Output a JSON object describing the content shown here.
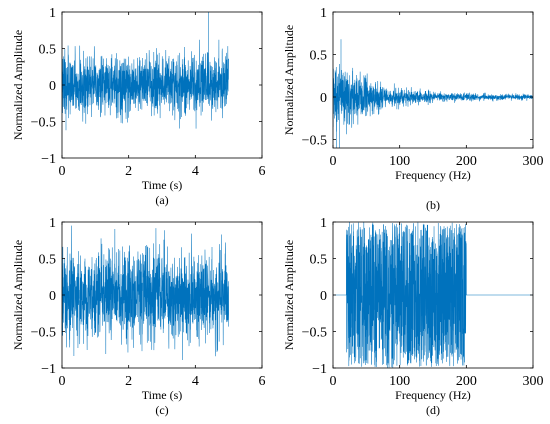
{
  "series_color": "#0072BD",
  "chart_data": [
    {
      "type": "line",
      "panel": "a",
      "caption": "(a)",
      "xlabel": "Time (s)",
      "ylabel": "Normalized Amplitude",
      "xlim": [
        0,
        6
      ],
      "ylim": [
        -1,
        1
      ],
      "xticks": [
        0,
        2,
        4,
        6
      ],
      "yticks": [
        -1,
        -0.5,
        0,
        0.5,
        1
      ],
      "x_tick_labels": [
        "0",
        "2",
        "4",
        "6"
      ],
      "y_tick_labels": [
        "−1",
        "−0.5",
        "0",
        "0.5",
        "1"
      ],
      "x_range": [
        0,
        5
      ],
      "signal": {
        "kind": "noise",
        "amplitude": 0.62,
        "baseline": 0,
        "spikes": [
          {
            "x": 4.4,
            "y": 1.0
          },
          {
            "x": 0.12,
            "y": -0.62
          }
        ]
      }
    },
    {
      "type": "line",
      "panel": "b",
      "caption": "(b)",
      "xlabel": "Frequency (Hz)",
      "ylabel": "Normalized Amplitude",
      "xlim": [
        0,
        300
      ],
      "ylim": [
        -0.6,
        1
      ],
      "xticks": [
        0,
        100,
        200,
        300
      ],
      "yticks": [
        -0.5,
        0,
        0.5,
        1
      ],
      "x_tick_labels": [
        "0",
        "100",
        "200",
        "300"
      ],
      "y_tick_labels": [
        "−0.5",
        "0",
        "0.5",
        "1"
      ],
      "x_range": [
        0,
        300
      ],
      "signal": {
        "kind": "decaying",
        "peak": 0.68,
        "trough": -0.6,
        "tail_amplitude": 0.04,
        "baseline": 0
      }
    },
    {
      "type": "line",
      "panel": "c",
      "caption": "(c)",
      "xlabel": "Time (s)",
      "ylabel": "Normalized Amplitude",
      "xlim": [
        0,
        6
      ],
      "ylim": [
        -1,
        1
      ],
      "xticks": [
        0,
        2,
        4,
        6
      ],
      "yticks": [
        -1,
        -0.5,
        0,
        0.5,
        1
      ],
      "x_tick_labels": [
        "0",
        "2",
        "4",
        "6"
      ],
      "y_tick_labels": [
        "−1",
        "−0.5",
        "0",
        "0.5",
        "1"
      ],
      "x_range": [
        0,
        5
      ],
      "signal": {
        "kind": "noise",
        "amplitude": 0.95,
        "baseline": 0,
        "spikes": []
      }
    },
    {
      "type": "line",
      "panel": "d",
      "caption": "(d)",
      "xlabel": "Frequency (Hz)",
      "ylabel": "Normalized Amplitude",
      "xlim": [
        0,
        300
      ],
      "ylim": [
        -1,
        1
      ],
      "xticks": [
        0,
        100,
        200,
        300
      ],
      "yticks": [
        -1,
        -0.5,
        0,
        0.5,
        1
      ],
      "x_tick_labels": [
        "0",
        "100",
        "200",
        "300"
      ],
      "y_tick_labels": [
        "−1",
        "−0.5",
        "0",
        "0.5",
        "1"
      ],
      "x_range": [
        0,
        300
      ],
      "signal": {
        "kind": "band",
        "band": [
          20,
          200
        ],
        "amplitude": 1.0,
        "baseline": 0
      }
    }
  ]
}
